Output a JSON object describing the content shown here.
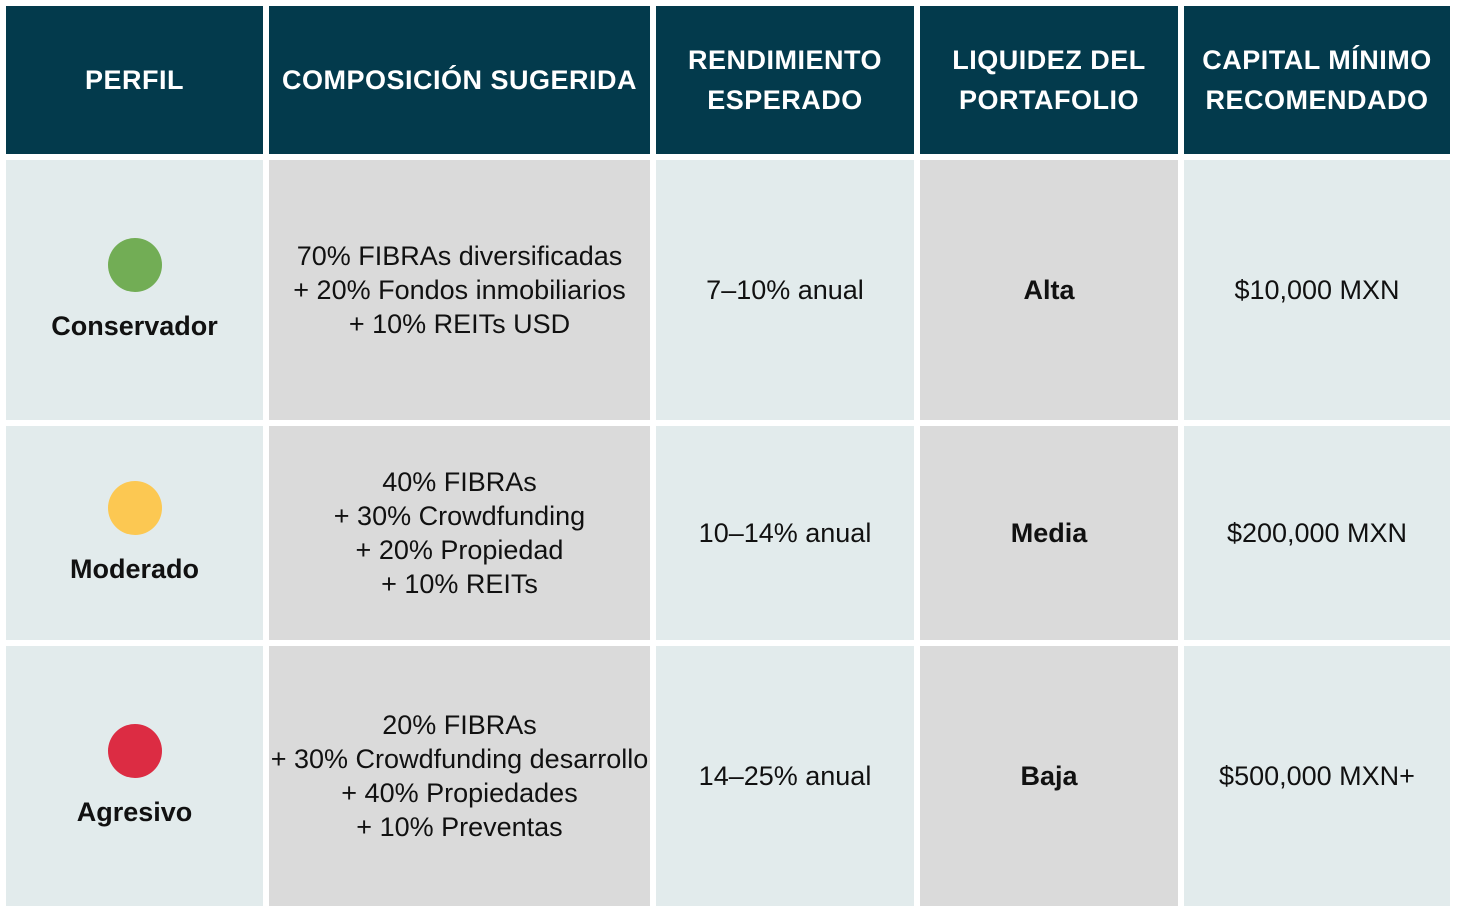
{
  "headers": {
    "perfil": [
      "PERFIL"
    ],
    "composicion": [
      "COMPOSICIÓN SUGERIDA"
    ],
    "rendimiento": [
      "RENDIMIENTO",
      "ESPERADO"
    ],
    "liquidez": [
      "LIQUIDEZ DEL",
      "PORTAFOLIO"
    ],
    "capital": [
      "CAPITAL MÍNIMO",
      "RECOMENDADO"
    ]
  },
  "rows": [
    {
      "profile": "Conservador",
      "color": "#72ad55",
      "color_name": "green",
      "composition": [
        "70% FIBRAs diversificadas",
        "+ 20% Fondos inmobiliarios",
        "+ 10% REITs USD"
      ],
      "yield": "7–10% anual",
      "liquidity": "Alta",
      "capital": "$10,000 MXN"
    },
    {
      "profile": "Moderado",
      "color": "#fcc852",
      "color_name": "yellow",
      "composition": [
        "40% FIBRAs",
        "+ 30% Crowdfunding",
        "+ 20% Propiedad",
        "+ 10% REITs"
      ],
      "yield": "10–14% anual",
      "liquidity": "Media",
      "capital": "$200,000 MXN"
    },
    {
      "profile": "Agresivo",
      "color": "#dc2c43",
      "color_name": "red",
      "composition": [
        "20% FIBRAs",
        "+ 30% Crowdfunding desarrollo",
        "+ 40% Propiedades",
        "+ 10% Preventas"
      ],
      "yield": "14–25% anual",
      "liquidity": "Baja",
      "capital": "$500,000 MXN+"
    }
  ],
  "colors": {
    "header_bg": "#033a4c",
    "light_cell": "#e2ebec",
    "gray_cell": "#dadada"
  }
}
